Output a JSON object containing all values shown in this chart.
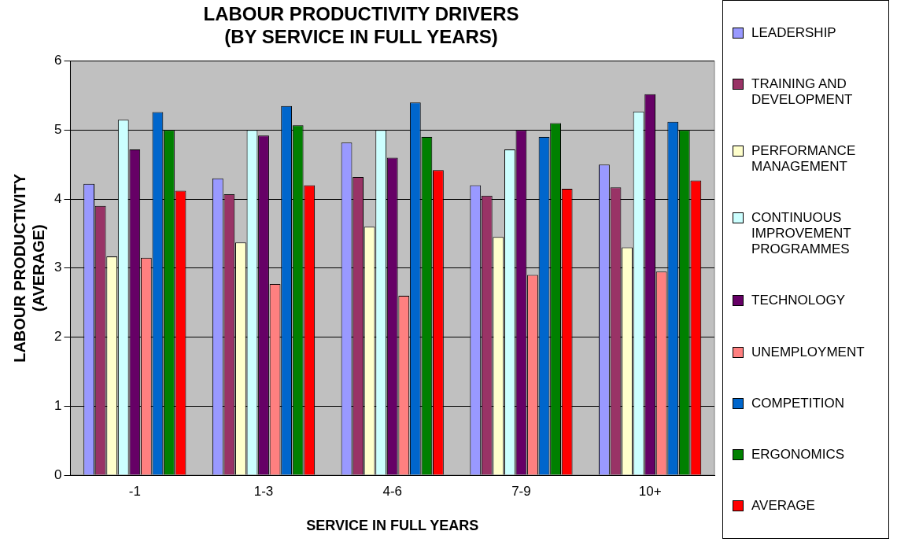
{
  "chart_data": {
    "type": "bar",
    "title": "LABOUR PRODUCTIVITY DRIVERS\n(BY SERVICE IN FULL YEARS)",
    "xlabel": "SERVICE IN FULL YEARS",
    "ylabel": "LABOUR PRODUCTIVITY\n(AVERAGE)",
    "categories": [
      "-1",
      "1-3",
      "4-6",
      "7-9",
      "10+"
    ],
    "series": [
      {
        "name": "LEADERSHIP",
        "color": "#9999ff",
        "values": [
          4.22,
          4.3,
          4.82,
          4.2,
          4.5
        ]
      },
      {
        "name": "TRAINING AND DEVELOPMENT",
        "color": "#993366",
        "values": [
          3.9,
          4.07,
          4.32,
          4.05,
          4.17
        ]
      },
      {
        "name": "PERFORMANCE MANAGEMENT",
        "color": "#ffffcc",
        "values": [
          3.17,
          3.37,
          3.6,
          3.45,
          3.3
        ]
      },
      {
        "name": "CONTINUOUS IMPROVEMENT PROGRAMMES",
        "color": "#ccffff",
        "values": [
          5.15,
          5.0,
          5.0,
          4.72,
          5.27
        ]
      },
      {
        "name": "TECHNOLOGY",
        "color": "#660066",
        "values": [
          4.72,
          4.92,
          4.6,
          5.0,
          5.52
        ]
      },
      {
        "name": "UNEMPLOYMENT",
        "color": "#ff8080",
        "values": [
          3.15,
          2.77,
          2.6,
          2.9,
          2.95
        ]
      },
      {
        "name": "COMPETITION",
        "color": "#0066cc",
        "values": [
          5.26,
          5.35,
          5.4,
          4.9,
          5.12
        ]
      },
      {
        "name": "ERGONOMICS",
        "color": "#008000",
        "values": [
          5.0,
          5.07,
          4.9,
          5.1,
          5.0
        ]
      },
      {
        "name": "AVERAGE",
        "color": "#ff0000",
        "values": [
          4.12,
          4.2,
          4.42,
          4.15,
          4.27
        ]
      }
    ],
    "ylim": [
      0,
      6
    ],
    "yticks": [
      0,
      1,
      2,
      3,
      4,
      5,
      6
    ],
    "grid": "y",
    "legend": "right"
  }
}
